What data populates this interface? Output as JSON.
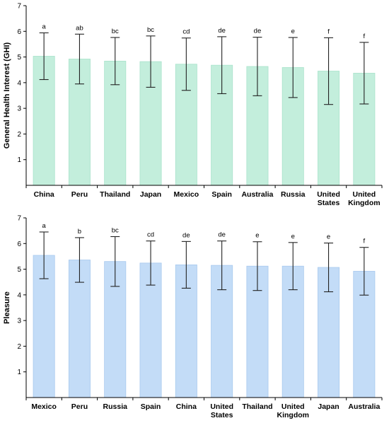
{
  "chart_data": [
    {
      "type": "bar",
      "ylabel": "General Health Interest (GHI)",
      "ylim": [
        0,
        7
      ],
      "yticks": [
        1,
        2,
        3,
        4,
        5,
        6,
        7
      ],
      "categories": [
        [
          "China"
        ],
        [
          "Peru"
        ],
        [
          "Thailand"
        ],
        [
          "Japan"
        ],
        [
          "Mexico"
        ],
        [
          "Spain"
        ],
        [
          "Australia"
        ],
        [
          "Russia"
        ],
        [
          "United",
          "States"
        ],
        [
          "United",
          "Kingdom"
        ]
      ],
      "values": [
        5.03,
        4.92,
        4.84,
        4.82,
        4.72,
        4.68,
        4.63,
        4.59,
        4.45,
        4.37
      ],
      "error": [
        0.91,
        0.97,
        0.92,
        1.0,
        1.02,
        1.11,
        1.14,
        1.17,
        1.3,
        1.2
      ],
      "significance": [
        "a",
        "ab",
        "bc",
        "bc",
        "cd",
        "de",
        "de",
        "e",
        "f",
        "f"
      ],
      "bar_color": "#c3eedc",
      "bar_edge": "#a9e3cb"
    },
    {
      "type": "bar",
      "ylabel": "Pleasure",
      "ylim": [
        0,
        7
      ],
      "yticks": [
        1,
        2,
        3,
        4,
        5,
        6,
        7
      ],
      "categories": [
        [
          "Mexico"
        ],
        [
          "Peru"
        ],
        [
          "Russia"
        ],
        [
          "Spain"
        ],
        [
          "China"
        ],
        [
          "United",
          "States"
        ],
        [
          "Thailand"
        ],
        [
          "United",
          "Kingdom"
        ],
        [
          "Japan"
        ],
        [
          "Australia"
        ]
      ],
      "values": [
        5.54,
        5.36,
        5.3,
        5.24,
        5.17,
        5.15,
        5.12,
        5.12,
        5.07,
        4.92
      ],
      "error": [
        0.91,
        0.87,
        0.97,
        0.86,
        0.91,
        0.95,
        0.95,
        0.92,
        0.95,
        0.93
      ],
      "significance": [
        "a",
        "b",
        "bc",
        "cd",
        "de",
        "de",
        "e",
        "e",
        "e",
        "f"
      ],
      "bar_color": "#c3dcf7",
      "bar_edge": "#a8c9ee"
    }
  ]
}
